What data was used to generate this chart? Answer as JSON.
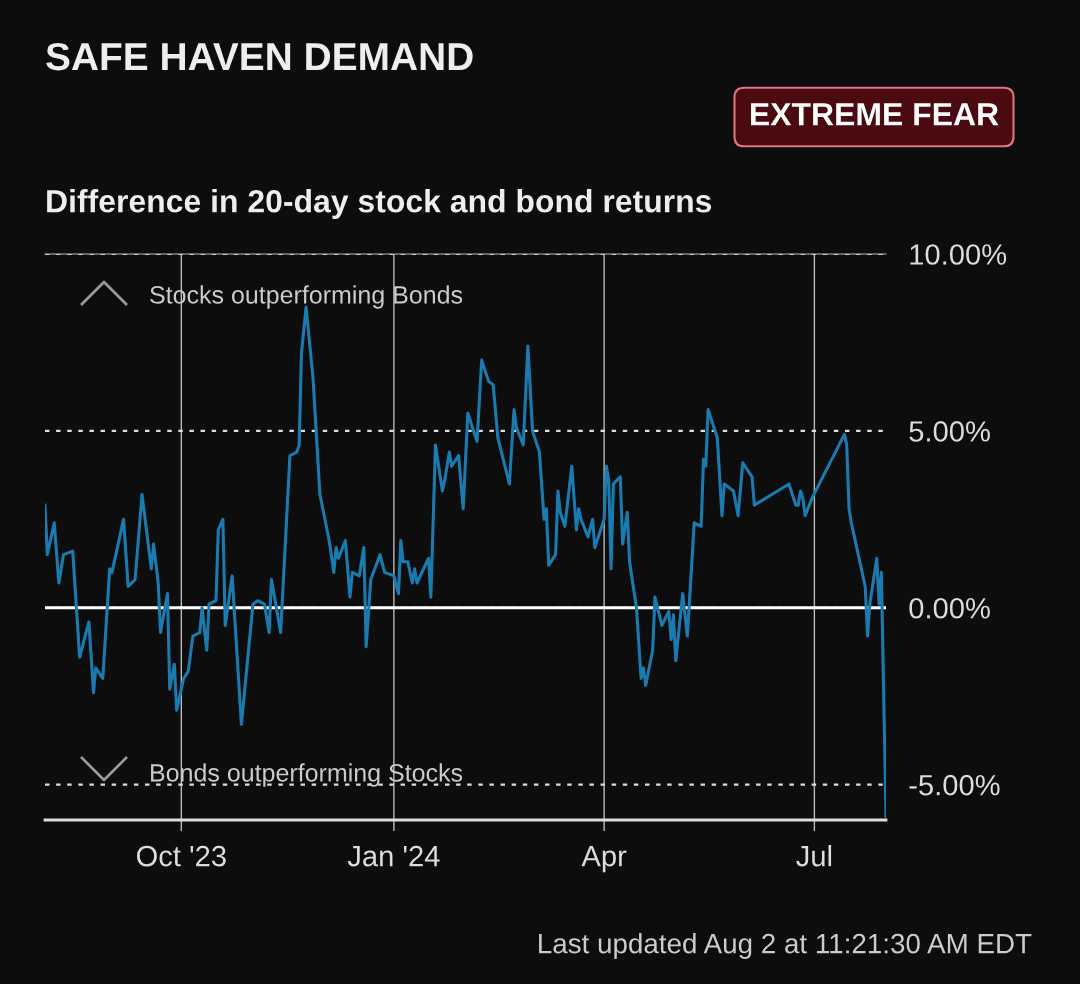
{
  "chart_data": {
    "type": "line",
    "title": "SAFE HAVEN DEMAND",
    "subtitle": "Difference in 20-day stock and bond returns",
    "annotations": [
      "EXTREME FEAR",
      "Stocks outperforming Bonds",
      "Bonds outperforming Stocks",
      "Last updated Aug 2 at 11:21:30 AM EDT"
    ],
    "x": [
      "2023-08-03",
      "2023-08-04",
      "2023-08-07",
      "2023-08-09",
      "2023-08-11",
      "2023-08-15",
      "2023-08-18",
      "2023-08-22",
      "2023-08-24",
      "2023-08-25",
      "2023-08-28",
      "2023-08-31",
      "2023-09-01",
      "2023-09-06",
      "2023-09-08",
      "2023-09-11",
      "2023-09-14",
      "2023-09-18",
      "2023-09-19",
      "2023-09-21",
      "2023-09-22",
      "2023-09-25",
      "2023-09-26",
      "2023-09-28",
      "2023-09-29",
      "2023-10-02",
      "2023-10-04",
      "2023-10-06",
      "2023-10-09",
      "2023-10-10",
      "2023-10-12",
      "2023-10-13",
      "2023-10-16",
      "2023-10-17",
      "2023-10-19",
      "2023-10-20",
      "2023-10-23",
      "2023-10-27",
      "2023-11-01",
      "2023-11-03",
      "2023-11-06",
      "2023-11-08",
      "2023-11-09",
      "2023-11-13",
      "2023-11-17",
      "2023-11-20",
      "2023-11-21",
      "2023-11-22",
      "2023-11-24",
      "2023-11-27",
      "2023-11-30",
      "2023-12-04",
      "2023-12-06",
      "2023-12-07",
      "2023-12-08",
      "2023-12-11",
      "2023-12-13",
      "2023-12-14",
      "2023-12-17",
      "2023-12-19",
      "2023-12-20",
      "2023-12-22",
      "2023-12-26",
      "2023-12-28",
      "2024-01-01",
      "2024-01-03",
      "2024-01-04",
      "2024-01-05",
      "2024-01-07",
      "2024-01-09",
      "2024-01-10",
      "2024-01-11",
      "2024-01-16",
      "2024-01-17",
      "2024-01-19",
      "2024-01-22",
      "2024-01-23",
      "2024-01-25",
      "2024-01-26",
      "2024-01-29",
      "2024-01-31",
      "2024-02-02",
      "2024-02-06",
      "2024-02-08",
      "2024-02-11",
      "2024-02-13",
      "2024-02-15",
      "2024-02-20",
      "2024-02-22",
      "2024-02-23",
      "2024-02-26",
      "2024-02-28",
      "2024-03-01",
      "2024-03-04",
      "2024-03-06",
      "2024-03-07",
      "2024-03-08",
      "2024-03-11",
      "2024-03-12",
      "2024-03-13",
      "2024-03-15",
      "2024-03-18",
      "2024-03-20",
      "2024-03-21",
      "2024-03-22",
      "2024-03-25",
      "2024-03-27",
      "2024-03-28",
      "2024-04-01",
      "2024-04-02",
      "2024-04-03",
      "2024-04-04",
      "2024-04-05",
      "2024-04-08",
      "2024-04-09",
      "2024-04-11",
      "2024-04-12",
      "2024-04-15",
      "2024-04-17",
      "2024-04-18",
      "2024-04-19",
      "2024-04-22",
      "2024-04-23",
      "2024-04-26",
      "2024-04-29",
      "2024-04-30",
      "2024-05-01",
      "2024-05-02",
      "2024-05-05",
      "2024-05-07",
      "2024-05-10",
      "2024-05-13",
      "2024-05-14",
      "2024-05-15",
      "2024-05-16",
      "2024-05-20",
      "2024-05-22",
      "2024-05-23",
      "2024-05-27",
      "2024-05-29",
      "2024-05-31",
      "2024-06-04",
      "2024-06-05",
      "2024-06-20",
      "2024-06-23",
      "2024-06-24",
      "2024-06-25",
      "2024-06-26",
      "2024-06-27",
      "2024-06-30",
      "2024-07-14",
      "2024-07-15",
      "2024-07-16",
      "2024-07-17",
      "2024-07-23",
      "2024-07-24",
      "2024-07-25",
      "2024-07-28",
      "2024-07-29",
      "2024-07-30",
      "2024-08-01"
    ],
    "series": [
      {
        "color": "#1a7bb0",
        "values": [
          2.9,
          1.5,
          2.4,
          0.7,
          1.5,
          1.6,
          -1.4,
          -0.4,
          -2.4,
          -1.7,
          -2.0,
          1.1,
          1.0,
          2.5,
          0.6,
          0.8,
          3.2,
          1.1,
          1.8,
          0.7,
          -0.7,
          0.4,
          -2.3,
          -1.6,
          -2.9,
          -2.0,
          -1.8,
          -0.8,
          -0.7,
          0.0,
          -1.2,
          0.1,
          0.2,
          2.2,
          2.5,
          -0.5,
          0.9,
          -3.3,
          0.1,
          0.2,
          0.1,
          -0.7,
          0.8,
          -0.7,
          4.3,
          4.4,
          4.6,
          7.2,
          8.5,
          6.5,
          3.2,
          1.9,
          1.0,
          1.7,
          1.4,
          1.9,
          0.3,
          1.0,
          0.9,
          1.7,
          -1.1,
          0.8,
          1.5,
          1.0,
          0.9,
          0.4,
          1.9,
          1.3,
          1.3,
          0.7,
          1.1,
          0.7,
          1.4,
          0.3,
          4.6,
          3.3,
          3.6,
          4.4,
          4.0,
          4.3,
          2.8,
          5.5,
          4.7,
          7.0,
          6.4,
          6.3,
          4.8,
          3.5,
          5.6,
          5.1,
          4.6,
          7.4,
          5.0,
          4.4,
          2.5,
          2.8,
          1.2,
          1.5,
          3.3,
          2.7,
          2.3,
          4.0,
          2.2,
          2.8,
          2.5,
          2.0,
          2.5,
          1.7,
          2.5,
          4.0,
          3.6,
          1.1,
          3.5,
          3.7,
          1.8,
          2.7,
          1.3,
          0.0,
          -2.0,
          -1.7,
          -2.2,
          -1.2,
          0.3,
          -0.5,
          -0.1,
          -0.9,
          -0.2,
          -1.5,
          0.4,
          -0.8,
          2.4,
          2.3,
          4.2,
          4.0,
          5.6,
          4.8,
          2.6,
          3.5,
          3.3,
          2.6,
          4.1,
          3.7,
          2.9,
          3.5,
          2.9,
          2.9,
          3.3,
          3.1,
          2.6,
          3.1,
          4.9,
          4.6,
          2.8,
          2.4,
          0.6,
          -0.8,
          0.1,
          1.4,
          0.1,
          1.0,
          -5.9
        ]
      }
    ],
    "xlim": [
      "2023-08-03",
      "2024-08-01"
    ],
    "xticks": [
      {
        "value": "2023-10-01",
        "label": "Oct '23"
      },
      {
        "value": "2024-01-01",
        "label": "Jan '24"
      },
      {
        "value": "2024-04-01",
        "label": "Apr"
      },
      {
        "value": "2024-07-01",
        "label": "Jul"
      }
    ],
    "ylim": [
      -6,
      10
    ],
    "yticks": [
      {
        "value": -5,
        "label": "-5.00%"
      },
      {
        "value": 0,
        "label": "0.00%"
      },
      {
        "value": 5,
        "label": "5.00%"
      },
      {
        "value": 10,
        "label": "10.00%"
      }
    ],
    "ref_lines": [
      {
        "axis": "y",
        "value": 0,
        "color": "#ffffff"
      }
    ],
    "grid": true,
    "legend": false,
    "marker": "none",
    "line_style": "solid"
  }
}
